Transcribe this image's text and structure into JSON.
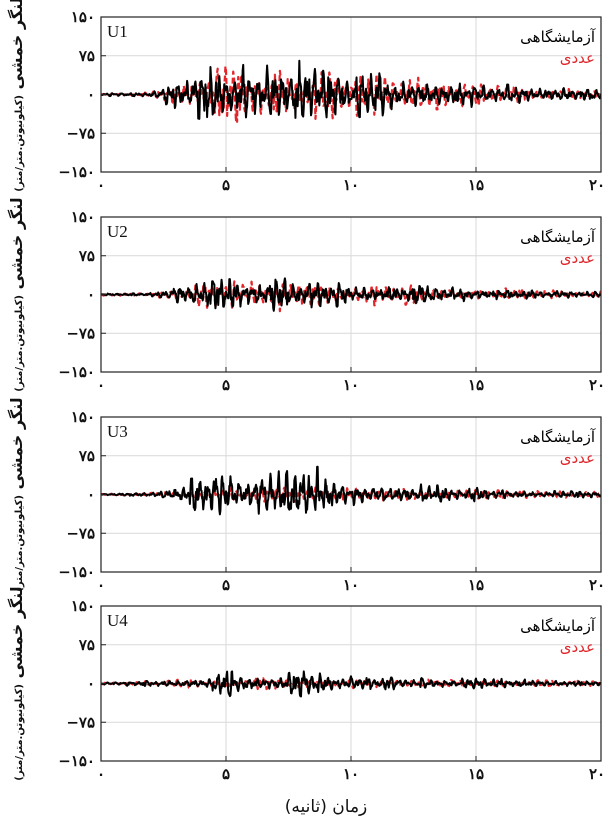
{
  "chart_data": [
    {
      "type": "line",
      "panel_label": "U1",
      "ylabel_main": "لنگر خمشی",
      "ylabel_unit": "(کیلونیوتن.متر/متر)",
      "xlabel": "",
      "xlim": [
        0,
        20
      ],
      "ylim": [
        -150,
        150
      ],
      "xticks": [
        0,
        5,
        10,
        15,
        20
      ],
      "xtick_labels": [
        "۰",
        "۵",
        "۱۰",
        "۱۵",
        "۲۰"
      ],
      "yticks": [
        150,
        75,
        0,
        -75,
        -150
      ],
      "ytick_labels": [
        "۱۵۰",
        "۷۵",
        "۰",
        "−۷۵",
        "−۱۵۰"
      ],
      "grid": true,
      "legend_position": "top-right",
      "series": [
        {
          "name": "آزمایشگاهی",
          "color": "#000000",
          "style": "solid",
          "envelope": [
            [
              0,
              3
            ],
            [
              2,
              4
            ],
            [
              2.5,
              15
            ],
            [
              3,
              35
            ],
            [
              4,
              48
            ],
            [
              5,
              62
            ],
            [
              6,
              58
            ],
            [
              7,
              55
            ],
            [
              8,
              66
            ],
            [
              9,
              52
            ],
            [
              10,
              45
            ],
            [
              12,
              38
            ],
            [
              14,
              28
            ],
            [
              16,
              20
            ],
            [
              18,
              14
            ],
            [
              20,
              10
            ]
          ]
        },
        {
          "name": "عددی",
          "color": "#e3262b",
          "style": "dashed",
          "envelope": [
            [
              0,
              2
            ],
            [
              2,
              4
            ],
            [
              2.5,
              12
            ],
            [
              3,
              30
            ],
            [
              4,
              40
            ],
            [
              5,
              55
            ],
            [
              6,
              50
            ],
            [
              6.8,
              62
            ],
            [
              8,
              50
            ],
            [
              9,
              48
            ],
            [
              10,
              42
            ],
            [
              12,
              36
            ],
            [
              14,
              26
            ],
            [
              16,
              18
            ],
            [
              18,
              12
            ],
            [
              20,
              8
            ]
          ]
        }
      ]
    },
    {
      "type": "line",
      "panel_label": "U2",
      "ylabel_main": "لنگر خمشی",
      "ylabel_unit": "(کیلونیوتن.متر/متر)",
      "xlabel": "",
      "xlim": [
        0,
        20
      ],
      "ylim": [
        -150,
        150
      ],
      "xticks": [
        0,
        5,
        10,
        15,
        20
      ],
      "xtick_labels": [
        "۰",
        "۵",
        "۱۰",
        "۱۵",
        "۲۰"
      ],
      "yticks": [
        150,
        75,
        0,
        -75,
        -150
      ],
      "ytick_labels": [
        "۱۵۰",
        "۷۵",
        "۰",
        "−۷۵",
        "−۱۵۰"
      ],
      "grid": true,
      "legend_position": "top-right",
      "series": [
        {
          "name": "آزمایشگاهی",
          "color": "#000000",
          "style": "solid",
          "envelope": [
            [
              0,
              2
            ],
            [
              2,
              3
            ],
            [
              3,
              15
            ],
            [
              4,
              22
            ],
            [
              5,
              30
            ],
            [
              6,
              28
            ],
            [
              7,
              32
            ],
            [
              8,
              30
            ],
            [
              9,
              25
            ],
            [
              10,
              22
            ],
            [
              12,
              18
            ],
            [
              14,
              14
            ],
            [
              16,
              10
            ],
            [
              18,
              7
            ],
            [
              20,
              5
            ]
          ]
        },
        {
          "name": "عددی",
          "color": "#e3262b",
          "style": "dashed",
          "envelope": [
            [
              0,
              2
            ],
            [
              2,
              3
            ],
            [
              3,
              12
            ],
            [
              4,
              24
            ],
            [
              5,
              34
            ],
            [
              6,
              30
            ],
            [
              7,
              33
            ],
            [
              8,
              28
            ],
            [
              9,
              24
            ],
            [
              10,
              22
            ],
            [
              12,
              20
            ],
            [
              14,
              16
            ],
            [
              16,
              12
            ],
            [
              18,
              8
            ],
            [
              20,
              6
            ]
          ]
        }
      ]
    },
    {
      "type": "line",
      "panel_label": "U3",
      "ylabel_main": "لنگر خمشی",
      "ylabel_unit": "(کیلونیوتن.متر/متر)",
      "xlabel": "",
      "xlim": [
        0,
        20
      ],
      "ylim": [
        -150,
        150
      ],
      "xticks": [
        0,
        5,
        10,
        15,
        20
      ],
      "xtick_labels": [
        "۰",
        "۵",
        "۱۰",
        "۱۵",
        "۲۰"
      ],
      "yticks": [
        150,
        75,
        0,
        -75,
        -150
      ],
      "ytick_labels": [
        "۱۵۰",
        "۷۵",
        "۰",
        "−۷۵",
        "−۱۵۰"
      ],
      "grid": true,
      "legend_position": "top-right",
      "series": [
        {
          "name": "آزمایشگاهی",
          "color": "#000000",
          "style": "solid",
          "envelope": [
            [
              0,
              2
            ],
            [
              2,
              3
            ],
            [
              3,
              20
            ],
            [
              3.5,
              30
            ],
            [
              5,
              40
            ],
            [
              6,
              35
            ],
            [
              7,
              42
            ],
            [
              8,
              70
            ],
            [
              8.5,
              72
            ],
            [
              9,
              45
            ],
            [
              10,
              30
            ],
            [
              12,
              22
            ],
            [
              14,
              16
            ],
            [
              16,
              10
            ],
            [
              18,
              7
            ],
            [
              20,
              5
            ]
          ]
        },
        {
          "name": "عددی",
          "color": "#e3262b",
          "style": "dashed",
          "envelope": [
            [
              0,
              2
            ],
            [
              2,
              3
            ],
            [
              3,
              8
            ],
            [
              5,
              12
            ],
            [
              7,
              14
            ],
            [
              9,
              14
            ],
            [
              11,
              12
            ],
            [
              13,
              11
            ],
            [
              15,
              9
            ],
            [
              17,
              7
            ],
            [
              20,
              5
            ]
          ]
        }
      ]
    },
    {
      "type": "line",
      "panel_label": "U4",
      "ylabel_main": "لنگر خمشی",
      "ylabel_unit": "(کیلونیوتن.متر/متر)",
      "xlabel": "زمان (ثانیه)",
      "xlim": [
        0,
        20
      ],
      "ylim": [
        -150,
        150
      ],
      "xticks": [
        0,
        5,
        10,
        15,
        20
      ],
      "xtick_labels": [
        "۰",
        "۵",
        "۱۰",
        "۱۵",
        "۲۰"
      ],
      "yticks": [
        150,
        75,
        0,
        -75,
        -150
      ],
      "ytick_labels": [
        "۱۵۰",
        "۷۵",
        "۰",
        "−۷۵",
        "−۱۵۰"
      ],
      "grid": true,
      "legend_position": "top-right",
      "series": [
        {
          "name": "آزمایشگاهی",
          "color": "#000000",
          "style": "solid",
          "envelope": [
            [
              0,
              4
            ],
            [
              2,
              5
            ],
            [
              3,
              9
            ],
            [
              4,
              12
            ],
            [
              5,
              22
            ],
            [
              5.4,
              30
            ],
            [
              6,
              18
            ],
            [
              7,
              16
            ],
            [
              8,
              25
            ],
            [
              9,
              18
            ],
            [
              10,
              14
            ],
            [
              12,
              11
            ],
            [
              14,
              10
            ],
            [
              16,
              9
            ],
            [
              18,
              8
            ],
            [
              20,
              7
            ]
          ]
        },
        {
          "name": "عددی",
          "color": "#e3262b",
          "style": "dashed",
          "envelope": [
            [
              0,
              3
            ],
            [
              2,
              4
            ],
            [
              3,
              7
            ],
            [
              4,
              9
            ],
            [
              5,
              13
            ],
            [
              6,
              12
            ],
            [
              7,
              12
            ],
            [
              8,
              12
            ],
            [
              9,
              10
            ],
            [
              10,
              9
            ],
            [
              12,
              8
            ],
            [
              14,
              7
            ],
            [
              16,
              6
            ],
            [
              18,
              6
            ],
            [
              20,
              5
            ]
          ]
        }
      ]
    }
  ]
}
